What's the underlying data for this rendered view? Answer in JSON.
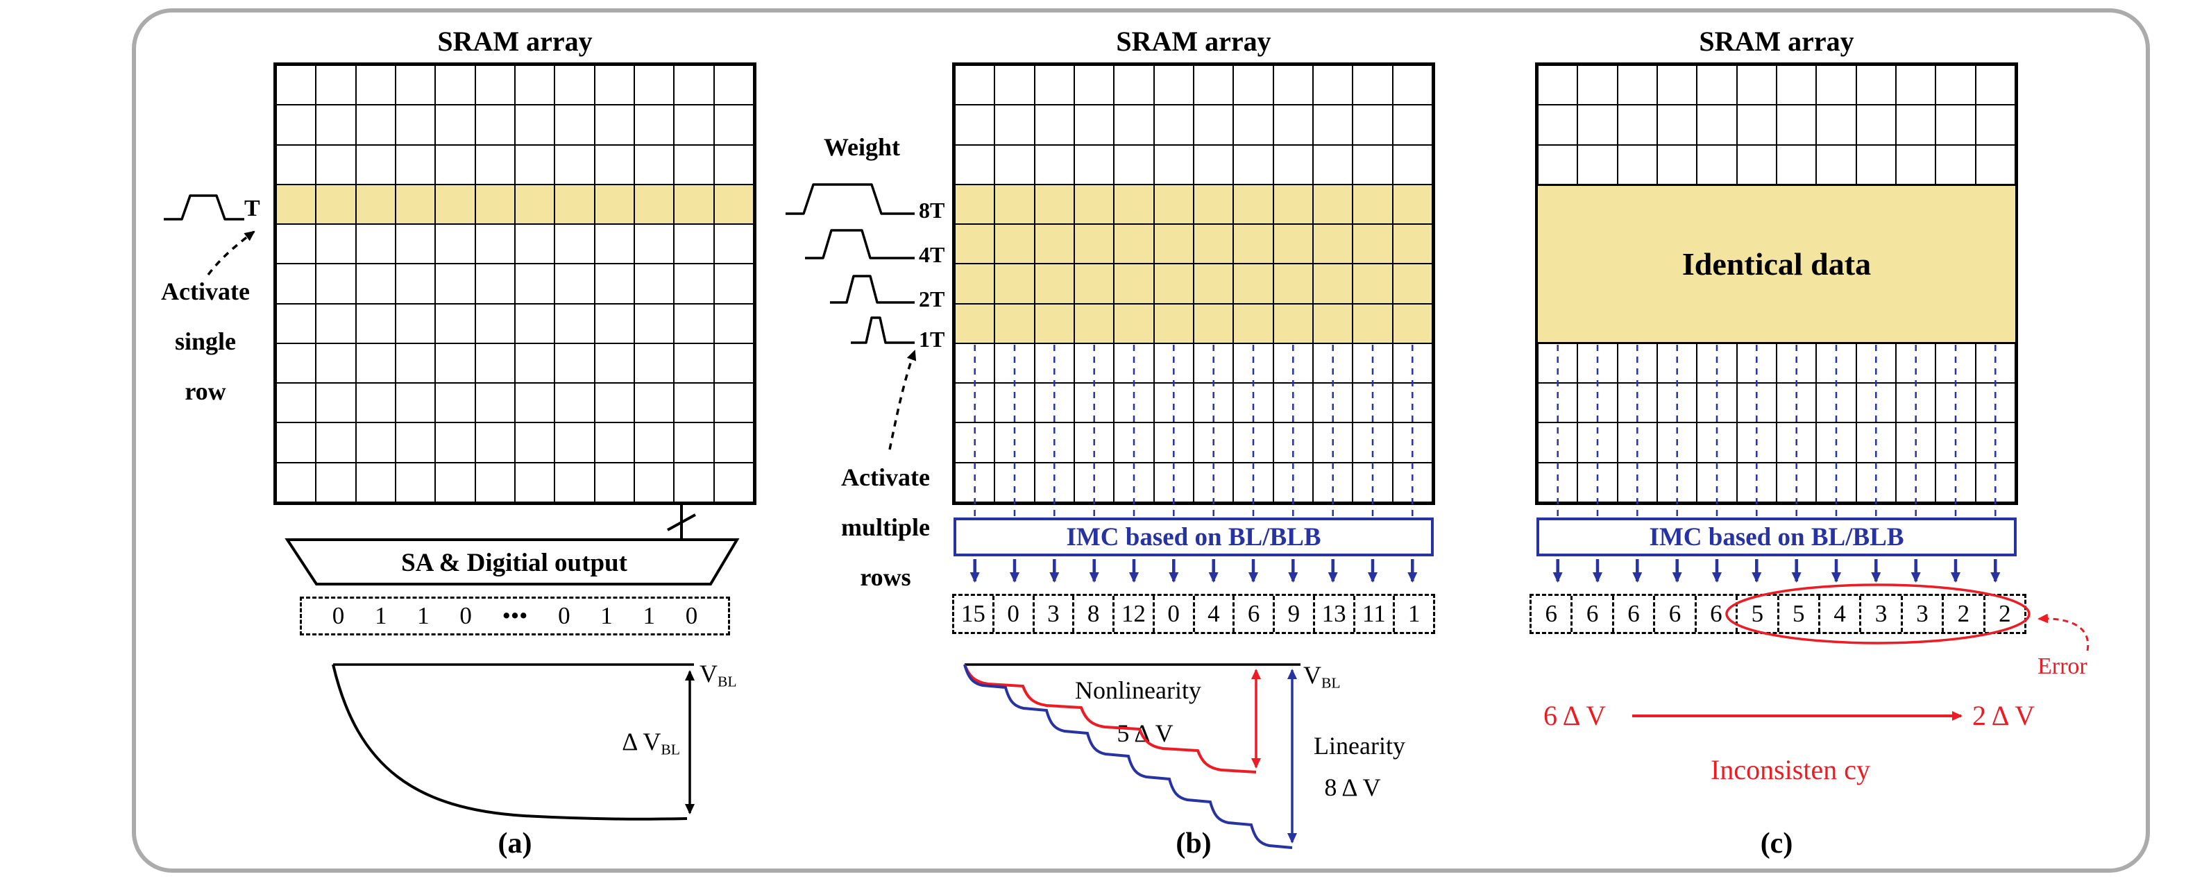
{
  "colors": {
    "highlight": "#f3e4a0",
    "blue": "#2733a3",
    "red": "#ed1c24",
    "frame": "#ababab"
  },
  "panel_a": {
    "title": "SRAM array",
    "pulse_label": "T",
    "activate_lines": [
      "Activate",
      "single",
      "row"
    ],
    "sa_label": "SA & Digitial output",
    "output_cells": [
      "0",
      "1",
      "1",
      "0",
      "•••",
      "0",
      "1",
      "1",
      "0"
    ],
    "vbl_main": "V",
    "vbl_sub": "BL",
    "delta_main": "Δ V",
    "delta_sub": "BL",
    "caption": "(a)",
    "grid": {
      "cols": 12,
      "rows": 11,
      "highlight_rows": [
        3
      ]
    }
  },
  "panel_b": {
    "title": "SRAM array",
    "weight_label": "Weight",
    "pulse_labels": [
      "8T",
      "4T",
      "2T",
      "1T"
    ],
    "activate_lines": [
      "Activate",
      "multiple",
      "rows"
    ],
    "imc_label": "IMC based on BL/BLB",
    "values": [
      "15",
      "0",
      "3",
      "8",
      "12",
      "0",
      "4",
      "6",
      "9",
      "13",
      "11",
      "1"
    ],
    "nonlinearity_label": "Nonlinearity",
    "nonlinearity_value": "5 Δ V",
    "linearity_label": "Linearity",
    "linearity_value": "8 Δ V",
    "vbl_main": "V",
    "vbl_sub": "BL",
    "caption": "(b)",
    "grid": {
      "cols": 12,
      "rows": 11,
      "highlight_rows": [
        3,
        4,
        5,
        6
      ]
    }
  },
  "panel_c": {
    "title": "SRAM array",
    "identical_label": "Identical data",
    "imc_label": "IMC based on BL/BLB",
    "values": [
      "6",
      "6",
      "6",
      "6",
      "6",
      "5",
      "5",
      "4",
      "3",
      "3",
      "2",
      "2"
    ],
    "error_label": "Error",
    "from_value": "6 Δ V",
    "to_value": "2 Δ V",
    "inconsistency_label": "Inconsisten cy",
    "caption": "(c)",
    "grid": {
      "cols": 12,
      "rows": 11,
      "highlight_rows": [
        3,
        4,
        5,
        6
      ]
    }
  }
}
